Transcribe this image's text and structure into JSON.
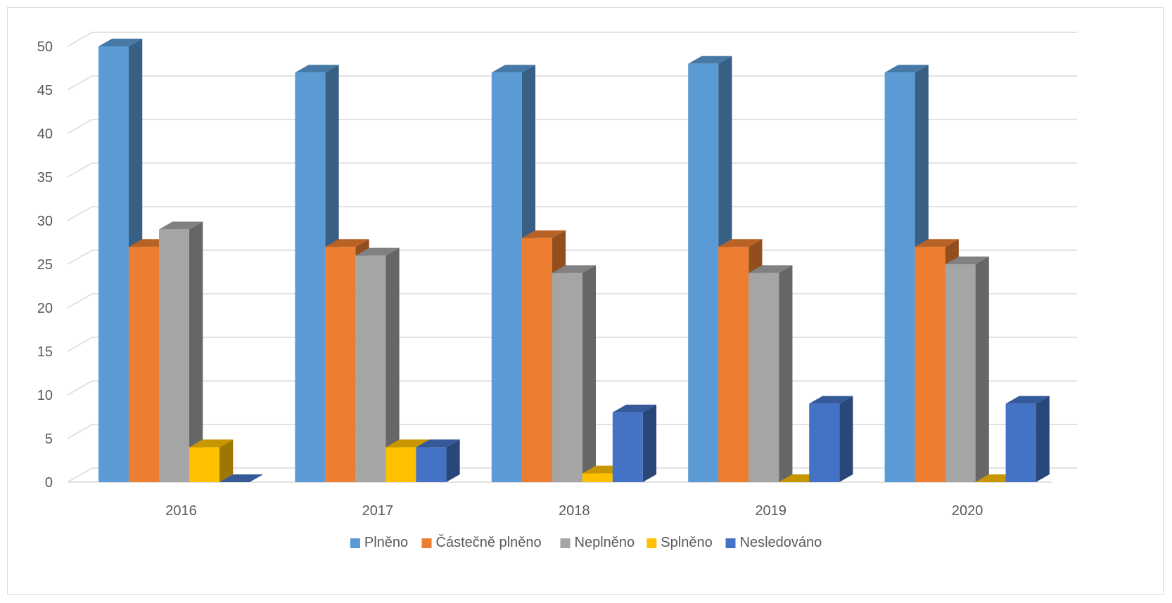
{
  "chart_data": {
    "type": "bar",
    "categories": [
      "2016",
      "2017",
      "2018",
      "2019",
      "2020"
    ],
    "series": [
      {
        "name": "Plněno",
        "values": [
          50,
          47,
          47,
          48,
          47
        ],
        "color": "#5B9BD5"
      },
      {
        "name": "Částečně plněno",
        "values": [
          27,
          27,
          28,
          27,
          27
        ],
        "color": "#ED7D31"
      },
      {
        "name": "Neplněno",
        "values": [
          29,
          26,
          24,
          24,
          25
        ],
        "color": "#A5A5A5"
      },
      {
        "name": "Splněno",
        "values": [
          4,
          4,
          1,
          0,
          0
        ],
        "color": "#FFC000"
      },
      {
        "name": "Nesledováno",
        "values": [
          0,
          4,
          8,
          9,
          9
        ],
        "color": "#4472C4"
      }
    ],
    "ylim": [
      0,
      50
    ],
    "yticks": [
      "0",
      "5",
      "10",
      "15",
      "20",
      "25",
      "30",
      "35",
      "40",
      "45",
      "50"
    ],
    "grid": true,
    "legend_position": "bottom",
    "style": "3d-clustered-column"
  }
}
